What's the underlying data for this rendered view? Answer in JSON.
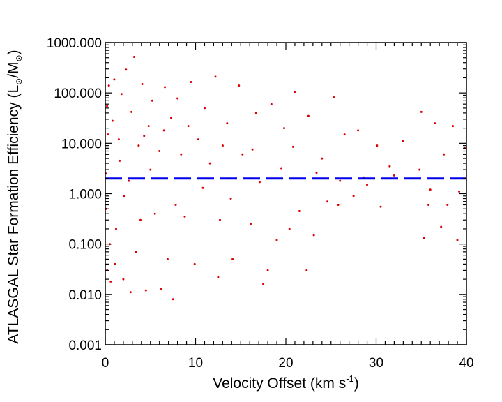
{
  "chart_data": {
    "type": "scatter",
    "title": "",
    "xlabel": {
      "main": "Velocity Offset (km s",
      "superscript": "-1",
      "tail": ")"
    },
    "ylabel": {
      "main": "ATLASGAL Star Formation Efficiency  (L",
      "sub1": "⊙",
      "mid": "/M",
      "sub2": "⊙",
      "tail": ")"
    },
    "xlim": [
      0,
      40
    ],
    "ylim": [
      0.001,
      1000
    ],
    "yscale": "log",
    "grid": false,
    "legend": "none",
    "x_ticks": [
      "0",
      "10",
      "20",
      "30",
      "40"
    ],
    "y_ticks": [
      "0.001",
      "0.010",
      "0.100",
      "1.000",
      "10.000",
      "100.000",
      "1000.000"
    ],
    "marker_color": "#dd0000",
    "reference_line": {
      "y": 2.0,
      "color": "#0000ee",
      "style": "dashed"
    },
    "series": [
      {
        "points": [
          [
            3.2,
            520
          ],
          [
            2.3,
            290
          ],
          [
            12.2,
            210
          ],
          [
            1.0,
            185
          ],
          [
            9.5,
            165
          ],
          [
            4.1,
            150
          ],
          [
            0.4,
            140
          ],
          [
            14.8,
            140
          ],
          [
            6.6,
            130
          ],
          [
            21.0,
            105
          ],
          [
            1.8,
            95
          ],
          [
            25.3,
            82
          ],
          [
            8.0,
            78
          ],
          [
            5.2,
            70
          ],
          [
            18.4,
            60
          ],
          [
            0.2,
            55
          ],
          [
            11.0,
            50
          ],
          [
            2.9,
            42
          ],
          [
            16.7,
            40
          ],
          [
            22.5,
            35
          ],
          [
            7.3,
            32
          ],
          [
            35.0,
            42
          ],
          [
            36.5,
            25
          ],
          [
            28.0,
            18
          ],
          [
            38.5,
            22
          ],
          [
            13.5,
            25
          ],
          [
            0.8,
            28
          ],
          [
            4.8,
            22
          ],
          [
            19.8,
            20
          ],
          [
            26.5,
            15
          ],
          [
            30.1,
            9
          ],
          [
            33.0,
            11
          ],
          [
            37.5,
            6
          ],
          [
            39.8,
            8
          ],
          [
            10.3,
            12
          ],
          [
            0.3,
            15
          ],
          [
            1.5,
            12
          ],
          [
            3.7,
            9
          ],
          [
            6.0,
            7
          ],
          [
            15.2,
            6
          ],
          [
            24.0,
            5
          ],
          [
            31.5,
            3.5
          ],
          [
            34.8,
            3
          ],
          [
            36.0,
            1.2
          ],
          [
            37.9,
            0.6
          ],
          [
            39.2,
            1.1
          ],
          [
            32.0,
            2.3
          ],
          [
            29.0,
            1.5
          ],
          [
            27.5,
            0.9
          ],
          [
            25.8,
            0.6
          ],
          [
            35.3,
            0.13
          ],
          [
            37.2,
            0.22
          ],
          [
            39.0,
            0.12
          ],
          [
            35.8,
            0.6
          ],
          [
            30.5,
            0.55
          ],
          [
            2.1,
            0.9
          ],
          [
            0.1,
            0.5
          ],
          [
            5.5,
            0.4
          ],
          [
            8.8,
            0.35
          ],
          [
            12.7,
            0.3
          ],
          [
            16.1,
            0.25
          ],
          [
            20.4,
            0.2
          ],
          [
            23.1,
            0.15
          ],
          [
            19.0,
            0.12
          ],
          [
            1.2,
            0.2
          ],
          [
            0.5,
            0.1
          ],
          [
            3.4,
            0.07
          ],
          [
            6.9,
            0.05
          ],
          [
            9.9,
            0.04
          ],
          [
            14.1,
            0.05
          ],
          [
            18.0,
            0.03
          ],
          [
            22.3,
            0.03
          ],
          [
            0.2,
            0.03
          ],
          [
            2.0,
            0.02
          ],
          [
            1.1,
            0.04
          ],
          [
            4.5,
            0.012
          ],
          [
            2.8,
            0.011
          ],
          [
            7.5,
            0.008
          ],
          [
            6.2,
            0.013
          ],
          [
            17.5,
            0.016
          ],
          [
            12.5,
            0.022
          ],
          [
            0.6,
            0.018
          ],
          [
            3.9,
            0.3
          ],
          [
            7.8,
            0.6
          ],
          [
            10.8,
            1.3
          ],
          [
            13.9,
            0.8
          ],
          [
            17.1,
            1.7
          ],
          [
            21.5,
            0.45
          ],
          [
            24.6,
            0.7
          ],
          [
            11.6,
            4.0
          ],
          [
            8.4,
            6.0
          ],
          [
            5.0,
            3.0
          ],
          [
            1.6,
            4.5
          ],
          [
            0.1,
            2.5
          ],
          [
            2.6,
            1.8
          ],
          [
            4.3,
            14.0
          ],
          [
            6.5,
            18.0
          ],
          [
            9.2,
            22.0
          ],
          [
            13.0,
            9.0
          ],
          [
            16.3,
            7.5
          ],
          [
            19.5,
            3.2
          ],
          [
            23.4,
            2.6
          ],
          [
            26.0,
            1.8
          ],
          [
            28.6,
            2.1
          ],
          [
            20.8,
            8.5
          ]
        ]
      }
    ]
  }
}
